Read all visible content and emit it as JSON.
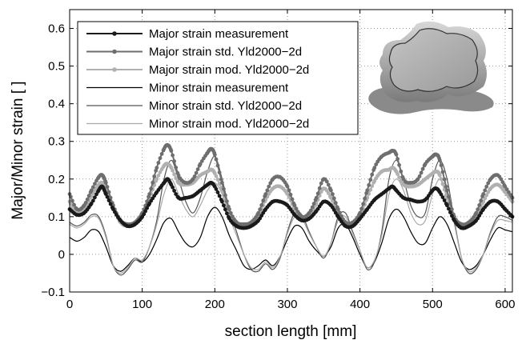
{
  "chart_data": {
    "type": "line",
    "xlabel": "section length [mm]",
    "ylabel": "Major/Minor strain [ ]",
    "xlim": [
      0,
      610
    ],
    "ylim": [
      -0.1,
      0.65
    ],
    "xticks": [
      0,
      100,
      200,
      300,
      400,
      500,
      600
    ],
    "yticks": [
      -0.1,
      0,
      0.1,
      0.2,
      0.3,
      0.4,
      0.5,
      0.6
    ],
    "xtick_labels": [
      "0",
      "100",
      "200",
      "300",
      "400",
      "500",
      "600"
    ],
    "ytick_labels": [
      "−0.1",
      "0",
      "0.1",
      "0.2",
      "0.3",
      "0.4",
      "0.5",
      "0.6"
    ],
    "grid": true,
    "legend_position": "top-left",
    "inset_image": "cross-shaped-deep-drawn-part",
    "series": [
      {
        "name": "Major strain measurement",
        "color": "#1a1a1a",
        "marker": true,
        "x": [
          0,
          10,
          20,
          30,
          40,
          45,
          50,
          60,
          70,
          80,
          90,
          100,
          110,
          120,
          130,
          135,
          140,
          150,
          160,
          170,
          180,
          190,
          195,
          200,
          210,
          220,
          230,
          240,
          250,
          260,
          270,
          280,
          290,
          300,
          310,
          320,
          330,
          340,
          350,
          360,
          370,
          380,
          390,
          400,
          410,
          420,
          430,
          440,
          445,
          450,
          460,
          470,
          480,
          490,
          500,
          505,
          510,
          520,
          530,
          540,
          550,
          560,
          570,
          580,
          590,
          600,
          610
        ],
        "y": [
          0.12,
          0.105,
          0.11,
          0.135,
          0.17,
          0.18,
          0.16,
          0.12,
          0.09,
          0.075,
          0.08,
          0.1,
          0.135,
          0.165,
          0.19,
          0.2,
          0.185,
          0.15,
          0.15,
          0.155,
          0.17,
          0.185,
          0.19,
          0.18,
          0.14,
          0.095,
          0.075,
          0.07,
          0.075,
          0.09,
          0.12,
          0.14,
          0.14,
          0.13,
          0.105,
          0.09,
          0.095,
          0.115,
          0.14,
          0.13,
          0.1,
          0.075,
          0.075,
          0.095,
          0.12,
          0.145,
          0.16,
          0.175,
          0.18,
          0.17,
          0.15,
          0.145,
          0.14,
          0.145,
          0.17,
          0.175,
          0.165,
          0.13,
          0.09,
          0.07,
          0.075,
          0.09,
          0.12,
          0.14,
          0.14,
          0.12,
          0.1
        ]
      },
      {
        "name": "Major strain std. Yld2000−2d",
        "color": "#6e6e6e",
        "marker": true,
        "x": [
          0,
          10,
          20,
          30,
          40,
          45,
          50,
          60,
          70,
          80,
          90,
          100,
          110,
          120,
          130,
          135,
          140,
          150,
          160,
          170,
          180,
          190,
          195,
          200,
          210,
          220,
          230,
          240,
          250,
          260,
          270,
          280,
          290,
          300,
          310,
          320,
          330,
          340,
          350,
          360,
          370,
          380,
          390,
          400,
          410,
          420,
          430,
          440,
          445,
          450,
          460,
          470,
          480,
          490,
          500,
          505,
          510,
          520,
          530,
          540,
          550,
          560,
          570,
          580,
          590,
          600,
          610
        ],
        "y": [
          0.16,
          0.12,
          0.13,
          0.17,
          0.205,
          0.21,
          0.19,
          0.13,
          0.09,
          0.08,
          0.085,
          0.11,
          0.16,
          0.23,
          0.28,
          0.29,
          0.275,
          0.21,
          0.19,
          0.2,
          0.24,
          0.27,
          0.28,
          0.265,
          0.19,
          0.12,
          0.085,
          0.08,
          0.085,
          0.11,
          0.16,
          0.2,
          0.205,
          0.18,
          0.13,
          0.1,
          0.11,
          0.15,
          0.2,
          0.17,
          0.12,
          0.085,
          0.085,
          0.11,
          0.17,
          0.23,
          0.26,
          0.27,
          0.275,
          0.265,
          0.2,
          0.19,
          0.2,
          0.24,
          0.26,
          0.265,
          0.25,
          0.17,
          0.1,
          0.08,
          0.085,
          0.11,
          0.16,
          0.2,
          0.21,
          0.18,
          0.15
        ]
      },
      {
        "name": "Major strain mod. Yld2000−2d",
        "color": "#b0b0b0",
        "marker": true,
        "x": [
          0,
          10,
          20,
          30,
          40,
          45,
          50,
          60,
          70,
          80,
          90,
          100,
          110,
          120,
          130,
          135,
          140,
          150,
          160,
          170,
          180,
          190,
          195,
          200,
          210,
          220,
          230,
          240,
          250,
          260,
          270,
          280,
          290,
          300,
          310,
          320,
          330,
          340,
          350,
          360,
          370,
          380,
          390,
          400,
          410,
          420,
          430,
          440,
          445,
          450,
          460,
          470,
          480,
          490,
          500,
          505,
          510,
          520,
          530,
          540,
          550,
          560,
          570,
          580,
          590,
          600,
          610
        ],
        "y": [
          0.14,
          0.11,
          0.12,
          0.155,
          0.185,
          0.19,
          0.175,
          0.125,
          0.085,
          0.075,
          0.08,
          0.105,
          0.15,
          0.2,
          0.235,
          0.24,
          0.23,
          0.19,
          0.185,
          0.19,
          0.21,
          0.22,
          0.225,
          0.215,
          0.17,
          0.11,
          0.08,
          0.075,
          0.08,
          0.1,
          0.145,
          0.175,
          0.18,
          0.16,
          0.12,
          0.095,
          0.1,
          0.135,
          0.175,
          0.15,
          0.11,
          0.08,
          0.08,
          0.1,
          0.15,
          0.195,
          0.22,
          0.225,
          0.23,
          0.22,
          0.185,
          0.18,
          0.185,
          0.2,
          0.215,
          0.22,
          0.21,
          0.15,
          0.095,
          0.075,
          0.08,
          0.1,
          0.14,
          0.175,
          0.185,
          0.165,
          0.14
        ]
      },
      {
        "name": "Minor strain measurement",
        "color": "#000000",
        "marker": false,
        "x": [
          0,
          10,
          20,
          30,
          40,
          50,
          60,
          70,
          80,
          90,
          100,
          110,
          120,
          130,
          140,
          150,
          160,
          170,
          180,
          190,
          200,
          210,
          220,
          230,
          240,
          250,
          260,
          270,
          280,
          290,
          300,
          310,
          320,
          330,
          340,
          350,
          360,
          370,
          380,
          390,
          400,
          410,
          420,
          430,
          440,
          450,
          460,
          470,
          480,
          490,
          500,
          510,
          520,
          530,
          540,
          550,
          560,
          570,
          580,
          590,
          600,
          610
        ],
        "y": [
          0.045,
          0.035,
          0.045,
          0.065,
          0.06,
          0.02,
          -0.03,
          -0.045,
          -0.03,
          -0.01,
          -0.02,
          0.0,
          0.04,
          0.085,
          0.095,
          0.06,
          0.03,
          0.02,
          0.045,
          0.1,
          0.125,
          0.1,
          0.05,
          0.01,
          -0.03,
          -0.04,
          -0.03,
          -0.015,
          -0.03,
          -0.005,
          0.04,
          0.075,
          0.07,
          0.035,
          0.01,
          -0.005,
          0.02,
          0.07,
          0.08,
          0.045,
          0.0,
          -0.035,
          -0.02,
          0.03,
          0.095,
          0.12,
          0.1,
          0.06,
          0.03,
          0.03,
          0.07,
          0.1,
          0.08,
          0.03,
          -0.02,
          -0.04,
          -0.03,
          0.0,
          0.04,
          0.07,
          0.065,
          0.06
        ]
      },
      {
        "name": "Minor strain std. Yld2000−2d",
        "color": "#555555",
        "marker": false,
        "x": [
          0,
          10,
          20,
          30,
          40,
          50,
          60,
          70,
          80,
          90,
          100,
          110,
          120,
          130,
          140,
          150,
          160,
          170,
          180,
          190,
          200,
          210,
          220,
          230,
          240,
          250,
          260,
          270,
          280,
          290,
          300,
          310,
          320,
          330,
          340,
          350,
          360,
          370,
          380,
          390,
          400,
          410,
          420,
          430,
          440,
          450,
          460,
          470,
          480,
          490,
          500,
          510,
          520,
          530,
          540,
          550,
          560,
          570,
          580,
          590,
          600,
          610
        ],
        "y": [
          0.085,
          0.075,
          0.085,
          0.105,
          0.1,
          0.05,
          -0.03,
          -0.055,
          -0.04,
          -0.015,
          -0.02,
          0.02,
          0.09,
          0.2,
          0.25,
          0.2,
          0.14,
          0.11,
          0.15,
          0.22,
          0.26,
          0.2,
          0.12,
          0.06,
          0.0,
          -0.04,
          -0.045,
          -0.025,
          -0.04,
          -0.01,
          0.06,
          0.11,
          0.105,
          0.06,
          0.02,
          -0.01,
          0.03,
          0.1,
          0.11,
          0.06,
          0.01,
          -0.04,
          -0.02,
          0.06,
          0.2,
          0.25,
          0.2,
          0.13,
          0.1,
          0.11,
          0.2,
          0.25,
          0.2,
          0.09,
          -0.01,
          -0.05,
          -0.04,
          0.0,
          0.06,
          0.1,
          0.1,
          0.09
        ]
      },
      {
        "name": "Minor strain mod. Yld2000−2d",
        "color": "#a8a8a8",
        "marker": false,
        "x": [
          0,
          10,
          20,
          30,
          40,
          50,
          60,
          70,
          80,
          90,
          100,
          110,
          120,
          130,
          140,
          150,
          160,
          170,
          180,
          190,
          200,
          210,
          220,
          230,
          240,
          250,
          260,
          270,
          280,
          290,
          300,
          310,
          320,
          330,
          340,
          350,
          360,
          370,
          380,
          390,
          400,
          410,
          420,
          430,
          440,
          450,
          460,
          470,
          480,
          490,
          500,
          510,
          520,
          530,
          540,
          550,
          560,
          570,
          580,
          590,
          600,
          610
        ],
        "y": [
          0.08,
          0.07,
          0.08,
          0.1,
          0.095,
          0.045,
          -0.03,
          -0.05,
          -0.035,
          -0.01,
          -0.015,
          0.02,
          0.08,
          0.16,
          0.2,
          0.16,
          0.12,
          0.1,
          0.13,
          0.17,
          0.19,
          0.16,
          0.1,
          0.05,
          0.0,
          -0.035,
          -0.04,
          -0.02,
          -0.035,
          -0.005,
          0.055,
          0.1,
          0.095,
          0.055,
          0.02,
          -0.005,
          0.03,
          0.09,
          0.1,
          0.055,
          0.01,
          -0.035,
          -0.015,
          0.05,
          0.16,
          0.2,
          0.17,
          0.11,
          0.08,
          0.09,
          0.16,
          0.2,
          0.16,
          0.08,
          -0.01,
          -0.045,
          -0.035,
          0.0,
          0.055,
          0.09,
          0.09,
          0.085
        ]
      }
    ]
  }
}
